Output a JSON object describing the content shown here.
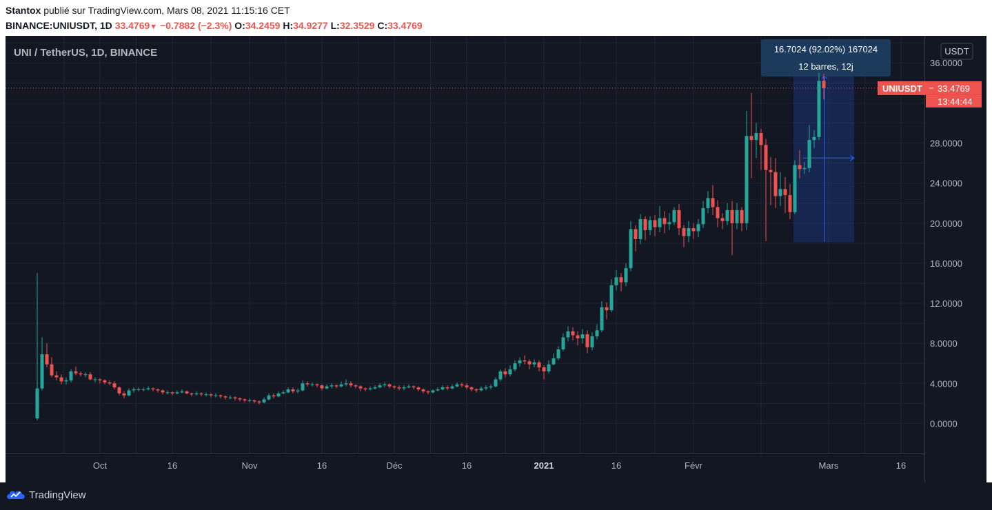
{
  "header": {
    "author": "Stantox",
    "published_text": "publié sur TradingView.com, Mars 08, 2021 11:15:16 CET",
    "symbol_line": "BINANCE:UNIUSDT, 1D",
    "last": "33.4769",
    "change": "−0.7882 (−2.3%)",
    "o_label": "O:",
    "o_value": "34.2459",
    "h_label": "H:",
    "h_value": "34.9277",
    "l_label": "L:",
    "l_value": "32.3529",
    "c_label": "C:",
    "c_value": "33.4769"
  },
  "chart_title": "UNI / TetherUS, 1D, BINANCE",
  "currency_badge": "USDT",
  "price_label": {
    "name": "UNIUSDT",
    "value": "33.4769",
    "countdown": "13:44:44"
  },
  "measure": {
    "line1": "16.7024 (92.02%) 167024",
    "line2": "12 barres, 12j",
    "from": 18.1,
    "to": 34.8
  },
  "footer": {
    "brand": "TradingView"
  },
  "colors": {
    "up": "#26a69a",
    "down": "#ef5350",
    "bg": "#131722",
    "grid": "#1f2433",
    "text": "#b2b5be",
    "measure": "#2962ff"
  },
  "chart_data": {
    "type": "candlestick",
    "title": "UNI / TetherUS, 1D, BINANCE",
    "ylim": [
      -3.0,
      38.7
    ],
    "y_ticks": [
      {
        "value": 36,
        "label": "36.0000"
      },
      {
        "value": 28,
        "label": "28.0000"
      },
      {
        "value": 24,
        "label": "24.0000"
      },
      {
        "value": 20,
        "label": "20.0000"
      },
      {
        "value": 16,
        "label": "16.0000"
      },
      {
        "value": 12,
        "label": "12.0000"
      },
      {
        "value": 8,
        "label": "8.0000"
      },
      {
        "value": 4,
        "label": "4.0000"
      },
      {
        "value": 0,
        "label": "0.0000"
      }
    ],
    "x_ticks": [
      {
        "index": 13,
        "label": "Oct",
        "bold": false
      },
      {
        "index": 28,
        "label": "16",
        "bold": false
      },
      {
        "index": 44,
        "label": "Nov",
        "bold": false
      },
      {
        "index": 59,
        "label": "16",
        "bold": false
      },
      {
        "index": 74,
        "label": "Déc",
        "bold": false
      },
      {
        "index": 89,
        "label": "16",
        "bold": false
      },
      {
        "index": 105,
        "label": "2021",
        "bold": true
      },
      {
        "index": 120,
        "label": "16",
        "bold": false
      },
      {
        "index": 136,
        "label": "Févr",
        "bold": false
      },
      {
        "index": 164,
        "label": "Mars",
        "bold": false
      },
      {
        "index": 179,
        "label": "16",
        "bold": false
      }
    ],
    "candles": [
      [
        0.5,
        3.5,
        0.3,
        15.0
      ],
      [
        3.5,
        6.9,
        3.3,
        8.6
      ],
      [
        6.9,
        5.9,
        5.6,
        8.0
      ],
      [
        5.9,
        4.8,
        4.6,
        6.6
      ],
      [
        4.8,
        4.6,
        4.3,
        5.2
      ],
      [
        4.6,
        4.2,
        3.9,
        4.9
      ],
      [
        4.2,
        4.3,
        3.9,
        4.6
      ],
      [
        4.3,
        5.2,
        4.1,
        5.4
      ],
      [
        5.2,
        5.0,
        4.8,
        5.7
      ],
      [
        5.0,
        4.9,
        4.7,
        5.2
      ],
      [
        4.9,
        4.9,
        4.6,
        5.1
      ],
      [
        4.9,
        4.4,
        4.3,
        5.1
      ],
      [
        4.4,
        4.4,
        4.1,
        4.6
      ],
      [
        4.4,
        4.3,
        4.0,
        4.5
      ],
      [
        4.3,
        4.1,
        3.9,
        4.4
      ],
      [
        4.1,
        4.0,
        3.8,
        4.3
      ],
      [
        4.0,
        3.6,
        3.4,
        4.2
      ],
      [
        3.6,
        3.0,
        2.8,
        3.7
      ],
      [
        3.0,
        2.8,
        2.5,
        3.2
      ],
      [
        2.8,
        3.3,
        2.7,
        3.5
      ],
      [
        3.3,
        3.4,
        3.1,
        3.6
      ],
      [
        3.4,
        3.4,
        3.2,
        3.6
      ],
      [
        3.4,
        3.4,
        3.2,
        3.6
      ],
      [
        3.4,
        3.5,
        3.3,
        3.7
      ],
      [
        3.5,
        3.4,
        3.2,
        3.6
      ],
      [
        3.4,
        3.3,
        3.1,
        3.5
      ],
      [
        3.3,
        3.1,
        2.9,
        3.4
      ],
      [
        3.1,
        3.1,
        2.9,
        3.3
      ],
      [
        3.1,
        3.0,
        2.8,
        3.2
      ],
      [
        3.0,
        3.1,
        2.9,
        3.3
      ],
      [
        3.1,
        3.2,
        3.0,
        3.4
      ],
      [
        3.2,
        3.0,
        2.9,
        3.3
      ],
      [
        3.0,
        2.9,
        2.7,
        3.1
      ],
      [
        2.9,
        3.0,
        2.8,
        3.2
      ],
      [
        3.0,
        2.9,
        2.7,
        3.1
      ],
      [
        2.9,
        2.9,
        2.7,
        3.1
      ],
      [
        2.9,
        2.8,
        2.6,
        3.0
      ],
      [
        2.8,
        2.8,
        2.6,
        3.0
      ],
      [
        2.8,
        2.7,
        2.5,
        2.9
      ],
      [
        2.7,
        2.6,
        2.4,
        2.8
      ],
      [
        2.6,
        2.6,
        2.4,
        2.8
      ],
      [
        2.6,
        2.5,
        2.3,
        2.7
      ],
      [
        2.5,
        2.4,
        2.2,
        2.6
      ],
      [
        2.4,
        2.3,
        2.1,
        2.5
      ],
      [
        2.3,
        2.3,
        2.1,
        2.5
      ],
      [
        2.3,
        2.2,
        2.0,
        2.4
      ],
      [
        2.2,
        2.1,
        1.9,
        2.3
      ],
      [
        2.1,
        2.4,
        2.0,
        2.6
      ],
      [
        2.4,
        2.8,
        2.3,
        3.0
      ],
      [
        2.8,
        2.7,
        2.5,
        3.0
      ],
      [
        2.7,
        3.0,
        2.6,
        3.2
      ],
      [
        3.0,
        3.1,
        2.9,
        3.3
      ],
      [
        3.1,
        3.4,
        3.0,
        3.6
      ],
      [
        3.4,
        3.2,
        3.0,
        3.6
      ],
      [
        3.2,
        3.3,
        3.0,
        3.5
      ],
      [
        3.3,
        4.0,
        3.2,
        4.3
      ],
      [
        4.0,
        3.9,
        3.7,
        4.2
      ],
      [
        3.9,
        3.9,
        3.7,
        4.1
      ],
      [
        3.9,
        3.8,
        3.6,
        4.0
      ],
      [
        3.8,
        3.5,
        3.3,
        3.9
      ],
      [
        3.5,
        3.7,
        3.4,
        3.9
      ],
      [
        3.7,
        3.8,
        3.5,
        4.0
      ],
      [
        3.8,
        3.7,
        3.5,
        3.9
      ],
      [
        3.7,
        3.9,
        3.6,
        4.2
      ],
      [
        3.9,
        4.0,
        3.7,
        4.4
      ],
      [
        4.0,
        3.8,
        3.6,
        4.2
      ],
      [
        3.8,
        3.7,
        3.5,
        3.9
      ],
      [
        3.7,
        3.5,
        3.2,
        3.8
      ],
      [
        3.5,
        3.4,
        3.2,
        3.6
      ],
      [
        3.4,
        3.5,
        3.3,
        3.7
      ],
      [
        3.5,
        3.6,
        3.4,
        3.8
      ],
      [
        3.6,
        3.8,
        3.5,
        4.0
      ],
      [
        3.8,
        3.9,
        3.6,
        4.1
      ],
      [
        3.9,
        3.7,
        3.5,
        4.0
      ],
      [
        3.7,
        3.6,
        3.4,
        3.8
      ],
      [
        3.6,
        3.5,
        3.3,
        3.8
      ],
      [
        3.5,
        3.6,
        3.3,
        3.8
      ],
      [
        3.6,
        3.7,
        3.5,
        3.9
      ],
      [
        3.7,
        3.6,
        3.4,
        3.8
      ],
      [
        3.6,
        3.4,
        3.2,
        3.7
      ],
      [
        3.4,
        3.2,
        3.0,
        3.5
      ],
      [
        3.2,
        3.1,
        2.9,
        3.3
      ],
      [
        3.1,
        3.3,
        3.0,
        3.4
      ],
      [
        3.3,
        3.4,
        3.2,
        3.6
      ],
      [
        3.4,
        3.6,
        3.3,
        3.8
      ],
      [
        3.6,
        3.5,
        3.3,
        3.8
      ],
      [
        3.5,
        3.7,
        3.4,
        3.9
      ],
      [
        3.7,
        3.9,
        3.6,
        4.1
      ],
      [
        3.9,
        3.8,
        3.6,
        4.1
      ],
      [
        3.8,
        3.6,
        3.4,
        4.0
      ],
      [
        3.6,
        3.4,
        3.2,
        3.7
      ],
      [
        3.4,
        3.3,
        3.1,
        3.5
      ],
      [
        3.3,
        3.5,
        3.2,
        3.7
      ],
      [
        3.5,
        3.6,
        3.3,
        3.8
      ],
      [
        3.6,
        3.7,
        3.4,
        3.9
      ],
      [
        3.7,
        4.4,
        3.6,
        4.6
      ],
      [
        4.4,
        5.2,
        4.2,
        5.4
      ],
      [
        5.2,
        4.9,
        4.6,
        5.5
      ],
      [
        4.9,
        5.4,
        4.7,
        5.8
      ],
      [
        5.4,
        6.0,
        5.2,
        6.3
      ],
      [
        6.0,
        6.3,
        5.7,
        6.6
      ],
      [
        6.3,
        6.2,
        5.9,
        6.8
      ],
      [
        6.2,
        5.9,
        5.4,
        6.4
      ],
      [
        5.9,
        6.1,
        5.6,
        6.4
      ],
      [
        6.1,
        5.6,
        5.2,
        6.3
      ],
      [
        5.6,
        5.2,
        4.4,
        5.8
      ],
      [
        5.2,
        5.9,
        5.0,
        6.3
      ],
      [
        5.9,
        6.5,
        5.8,
        7.0
      ],
      [
        6.5,
        7.4,
        6.3,
        7.7
      ],
      [
        7.4,
        8.6,
        7.2,
        9.0
      ],
      [
        8.6,
        9.2,
        8.2,
        9.7
      ],
      [
        9.2,
        8.8,
        8.3,
        9.6
      ],
      [
        8.8,
        8.5,
        7.8,
        9.2
      ],
      [
        8.5,
        8.9,
        8.0,
        9.4
      ],
      [
        8.9,
        7.6,
        7.0,
        9.3
      ],
      [
        7.6,
        8.7,
        7.3,
        9.1
      ],
      [
        8.7,
        9.3,
        8.4,
        9.9
      ],
      [
        9.3,
        11.6,
        9.1,
        12.2
      ],
      [
        11.6,
        11.3,
        10.4,
        12.1
      ],
      [
        11.3,
        13.8,
        11.1,
        14.4
      ],
      [
        13.8,
        14.6,
        13.3,
        15.3
      ],
      [
        14.6,
        14.1,
        13.2,
        15.0
      ],
      [
        14.1,
        15.5,
        13.7,
        16.0
      ],
      [
        15.5,
        19.4,
        15.2,
        20.2
      ],
      [
        19.4,
        18.4,
        17.2,
        19.8
      ],
      [
        18.4,
        20.4,
        17.9,
        20.9
      ],
      [
        20.4,
        19.3,
        18.3,
        20.7
      ],
      [
        19.3,
        20.3,
        18.8,
        20.7
      ],
      [
        20.3,
        19.6,
        18.7,
        20.8
      ],
      [
        19.6,
        20.5,
        19.1,
        21.7
      ],
      [
        20.5,
        19.9,
        19.0,
        21.2
      ],
      [
        19.9,
        20.1,
        19.3,
        21.0
      ],
      [
        20.1,
        21.3,
        19.8,
        21.6
      ],
      [
        21.3,
        19.5,
        18.8,
        21.9
      ],
      [
        19.5,
        18.7,
        17.6,
        19.8
      ],
      [
        18.7,
        19.5,
        18.1,
        20.2
      ],
      [
        19.5,
        19.2,
        18.4,
        20.0
      ],
      [
        19.2,
        19.9,
        18.6,
        20.4
      ],
      [
        19.9,
        21.5,
        19.5,
        22.2
      ],
      [
        21.5,
        22.5,
        21.0,
        23.2
      ],
      [
        22.5,
        21.6,
        20.8,
        23.8
      ],
      [
        21.6,
        20.5,
        19.6,
        22.3
      ],
      [
        20.5,
        20.2,
        19.4,
        21.0
      ],
      [
        20.2,
        21.3,
        19.8,
        22.0
      ],
      [
        21.3,
        20.0,
        16.8,
        22.2
      ],
      [
        20.0,
        21.3,
        19.4,
        22.0
      ],
      [
        21.3,
        20.0,
        19.2,
        21.6
      ],
      [
        20.0,
        28.7,
        19.3,
        31.2
      ],
      [
        28.7,
        28.3,
        24.5,
        33.0
      ],
      [
        28.3,
        29.0,
        26.5,
        30.0
      ],
      [
        29.0,
        27.8,
        25.3,
        29.4
      ],
      [
        27.8,
        25.3,
        18.2,
        28.4
      ],
      [
        25.3,
        25.1,
        21.8,
        26.6
      ],
      [
        25.1,
        22.7,
        21.5,
        26.5
      ],
      [
        22.7,
        23.4,
        21.7,
        25.1
      ],
      [
        23.4,
        22.8,
        21.0,
        24.6
      ],
      [
        22.8,
        21.1,
        20.4,
        23.9
      ],
      [
        21.1,
        25.8,
        20.9,
        26.3
      ],
      [
        25.8,
        25.4,
        24.5,
        27.3
      ],
      [
        25.4,
        25.5,
        24.9,
        26.1
      ],
      [
        25.5,
        28.3,
        25.1,
        29.8
      ],
      [
        28.3,
        28.6,
        27.5,
        29.3
      ],
      [
        28.6,
        34.2,
        28.3,
        35.0
      ],
      [
        34.2,
        33.4769,
        32.3529,
        34.9277
      ]
    ]
  }
}
